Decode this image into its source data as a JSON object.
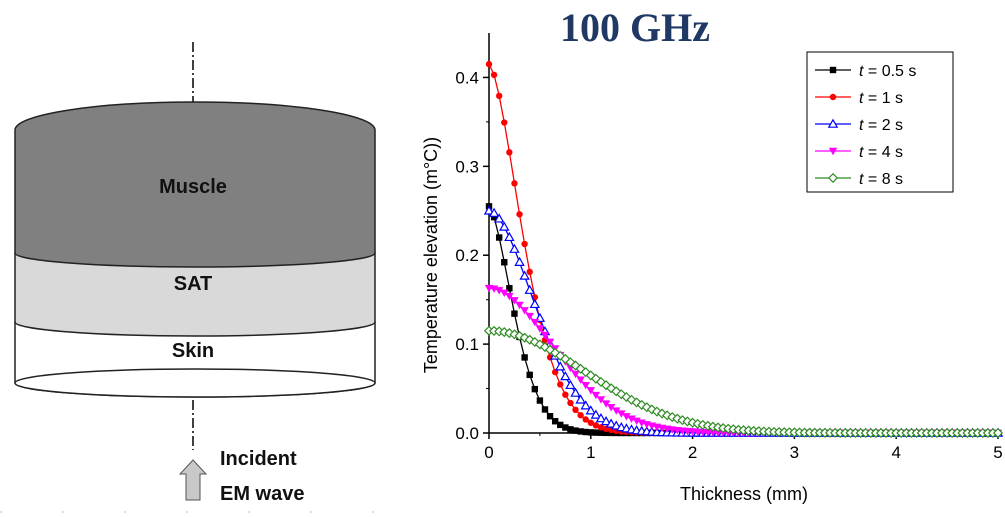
{
  "diagram": {
    "layers": [
      {
        "label": "Muscle",
        "fill": "#808080"
      },
      {
        "label": "SAT",
        "fill": "#d9d9d9"
      },
      {
        "label": "Skin",
        "fill": "#ffffff"
      }
    ],
    "incident_line1": "Incident",
    "incident_line2": "EM wave"
  },
  "chart_data": {
    "type": "line",
    "title": "100 GHz",
    "xlabel": "Thickness (mm)",
    "ylabel": "Temperature elevation (m°C))",
    "xlim": [
      0,
      5
    ],
    "ylim": [
      0,
      0.45
    ],
    "xticks": [
      "0",
      "1",
      "2",
      "3",
      "4",
      "5"
    ],
    "yticks": [
      "0.0",
      "0.1",
      "0.2",
      "0.3",
      "0.4"
    ],
    "legend_position": "top-right",
    "series": [
      {
        "name": "t = 0.5 s",
        "color": "#000000",
        "marker": "square",
        "peak": 0.255,
        "width": 0.33,
        "power": 1.6
      },
      {
        "name": "t = 1 s",
        "color": "#ff0000",
        "marker": "circle",
        "peak": 0.415,
        "width": 0.45,
        "power": 1.6
      },
      {
        "name": "t = 2 s",
        "color": "#0000ff",
        "marker": "triangle-up",
        "peak": 0.25,
        "width": 0.63,
        "power": 1.8
      },
      {
        "name": "t = 4 s",
        "color": "#ff00ff",
        "marker": "triangle-down",
        "peak": 0.163,
        "width": 0.9,
        "power": 1.9
      },
      {
        "name": "t = 8 s",
        "color": "#2e8b22",
        "marker": "diamond",
        "peak": 0.115,
        "width": 1.32,
        "power": 2.0
      }
    ]
  }
}
